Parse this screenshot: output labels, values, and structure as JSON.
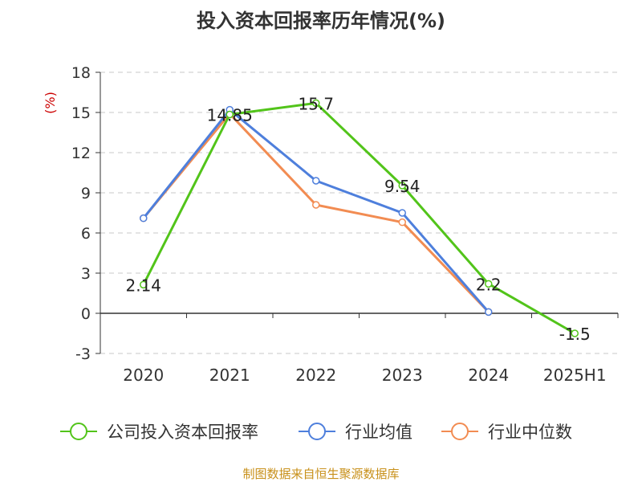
{
  "chart_data": {
    "type": "line",
    "title": "投入资本回报率历年情况(%)",
    "ylabel": "(%)",
    "xlabel": "",
    "categories": [
      "2020",
      "2021",
      "2022",
      "2023",
      "2024",
      "2025H1"
    ],
    "ylim": [
      -3,
      18
    ],
    "yticks": [
      -3,
      0,
      3,
      6,
      9,
      12,
      15,
      18
    ],
    "grid": true,
    "legend_position": "bottom",
    "series": [
      {
        "name": "公司投入资本回报率",
        "color": "#52c41a",
        "values": [
          2.14,
          14.85,
          15.7,
          9.54,
          2.2,
          -1.5
        ],
        "labels": [
          "2.14",
          "14.85",
          "15.7",
          "9.54",
          "2.2",
          "-1.5"
        ]
      },
      {
        "name": "行业均值",
        "color": "#4e7fdc",
        "values": [
          7.1,
          15.2,
          9.9,
          7.5,
          0.1,
          null
        ]
      },
      {
        "name": "行业中位数",
        "color": "#f28c52",
        "values": [
          7.1,
          14.9,
          8.1,
          6.8,
          0.1,
          null
        ]
      }
    ],
    "source": "制图数据来自恒生聚源数据库"
  }
}
